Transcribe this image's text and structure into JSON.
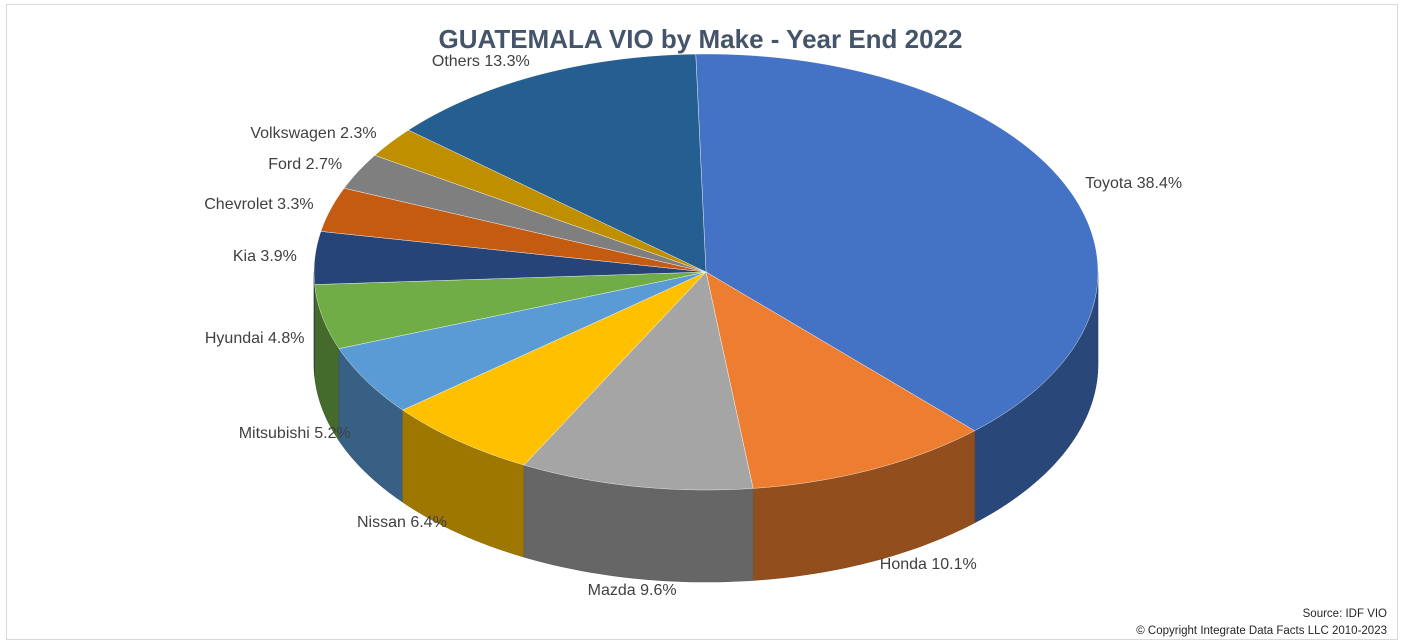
{
  "chart_data": {
    "type": "pie",
    "title": "GUATEMALA VIO by Make - Year End 2022",
    "slices": [
      {
        "name": "Toyota",
        "value": 38.4,
        "label": "Toyota 38.4%",
        "color": "#4472c4"
      },
      {
        "name": "Honda",
        "value": 10.1,
        "label": "Honda 10.1%",
        "color": "#ed7d31"
      },
      {
        "name": "Mazda",
        "value": 9.6,
        "label": "Mazda 9.6%",
        "color": "#a5a5a5"
      },
      {
        "name": "Nissan",
        "value": 6.4,
        "label": "Nissan 6.4%",
        "color": "#ffc000"
      },
      {
        "name": "Mitsubishi",
        "value": 5.2,
        "label": "Mitsubishi  5.2%",
        "color": "#5b9bd5"
      },
      {
        "name": "Hyundai",
        "value": 4.8,
        "label": "Hyundai  4.8%",
        "color": "#70ad47"
      },
      {
        "name": "Kia",
        "value": 3.9,
        "label": "Kia 3.9%",
        "color": "#264478"
      },
      {
        "name": "Chevrolet",
        "value": 3.3,
        "label": "Chevrolet 3.3%",
        "color": "#c55a11"
      },
      {
        "name": "Ford",
        "value": 2.7,
        "label": "Ford 2.7%",
        "color": "#7f7f7f"
      },
      {
        "name": "Volkswagen",
        "value": 2.3,
        "label": "Volkswagen 2.3%",
        "color": "#bf8f00"
      },
      {
        "name": "Others",
        "value": 13.3,
        "label": "Others 13.3%",
        "color": "#255e91"
      }
    ],
    "style": "3d-pie"
  },
  "footer": {
    "source": "Source: IDF VIO",
    "copyright": "© Copyright Integrate Data Facts LLC 2010-2023"
  }
}
